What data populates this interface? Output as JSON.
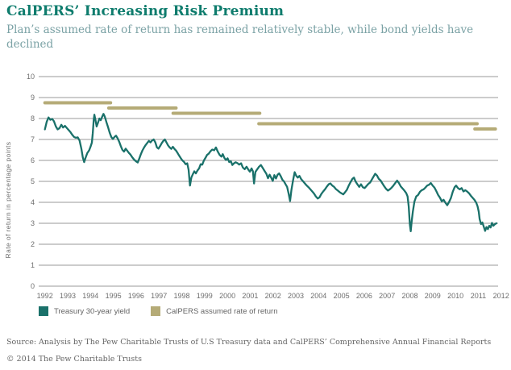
{
  "header": {
    "title": "CalPERS’ Increasing Risk Premium",
    "subtitle": "Plan’s assumed rate of return has remained relatively stable, while bond yields have declined"
  },
  "colors": {
    "title_teal": "#0e7c6d",
    "subtitle_gray_teal": "#7ba2a5",
    "treasury_line": "#1a716a",
    "calpers_line": "#b5ab77",
    "gridline": "#999999",
    "tick_label": "#6e6e6e",
    "footer_text": "#666666"
  },
  "legend": {
    "items": [
      {
        "label": "Treasury 30-year yield",
        "color": "#1a716a",
        "swatch": "teal-square"
      },
      {
        "label": "CalPERS assumed rate of return",
        "color": "#b5ab77",
        "swatch": "olive-square"
      }
    ]
  },
  "footer": {
    "source": "Source: Analysis by The Pew Charitable Trusts of U.S Treasury data and CalPERS’ Comprehensive Annual Financial Reports",
    "copyright": "© 2014 The Pew Charitable Trusts"
  },
  "chart_data": {
    "type": "line",
    "ylabel": "Rate of return in percentage points",
    "xlabel": "",
    "ylim": [
      0,
      10
    ],
    "xlim": [
      1992,
      2012
    ],
    "y_ticks": [
      0,
      1,
      2,
      3,
      4,
      5,
      6,
      7,
      8,
      9,
      10
    ],
    "x_ticks": [
      1992,
      1993,
      1994,
      1995,
      1996,
      1997,
      1998,
      1999,
      2000,
      2001,
      2002,
      2003,
      2004,
      2005,
      2006,
      2007,
      2008,
      2009,
      2010,
      2011,
      2012
    ],
    "grid": true,
    "legend_position": "bottom",
    "series": [
      {
        "name": "Treasury 30-year yield",
        "type": "line",
        "color": "#1a716a",
        "points": [
          [
            1992.0,
            7.48
          ],
          [
            1992.08,
            7.85
          ],
          [
            1992.16,
            8.05
          ],
          [
            1992.24,
            7.94
          ],
          [
            1992.32,
            7.98
          ],
          [
            1992.4,
            7.86
          ],
          [
            1992.48,
            7.62
          ],
          [
            1992.56,
            7.48
          ],
          [
            1992.64,
            7.54
          ],
          [
            1992.72,
            7.7
          ],
          [
            1992.8,
            7.57
          ],
          [
            1992.88,
            7.65
          ],
          [
            1992.96,
            7.55
          ],
          [
            1993.04,
            7.45
          ],
          [
            1993.12,
            7.35
          ],
          [
            1993.2,
            7.22
          ],
          [
            1993.28,
            7.12
          ],
          [
            1993.36,
            7.08
          ],
          [
            1993.44,
            7.1
          ],
          [
            1993.52,
            6.95
          ],
          [
            1993.6,
            6.55
          ],
          [
            1993.66,
            6.15
          ],
          [
            1993.72,
            5.92
          ],
          [
            1993.78,
            6.12
          ],
          [
            1993.86,
            6.35
          ],
          [
            1993.94,
            6.48
          ],
          [
            1994.0,
            6.65
          ],
          [
            1994.06,
            6.85
          ],
          [
            1994.1,
            7.3
          ],
          [
            1994.14,
            7.95
          ],
          [
            1994.17,
            8.18
          ],
          [
            1994.22,
            7.92
          ],
          [
            1994.27,
            7.62
          ],
          [
            1994.33,
            7.8
          ],
          [
            1994.39,
            8.0
          ],
          [
            1994.45,
            7.92
          ],
          [
            1994.51,
            8.08
          ],
          [
            1994.57,
            8.22
          ],
          [
            1994.63,
            8.08
          ],
          [
            1994.7,
            7.82
          ],
          [
            1994.77,
            7.58
          ],
          [
            1994.84,
            7.32
          ],
          [
            1994.91,
            7.12
          ],
          [
            1994.98,
            7.02
          ],
          [
            1995.05,
            7.12
          ],
          [
            1995.12,
            7.18
          ],
          [
            1995.19,
            7.05
          ],
          [
            1995.26,
            6.88
          ],
          [
            1995.33,
            6.68
          ],
          [
            1995.4,
            6.5
          ],
          [
            1995.47,
            6.42
          ],
          [
            1995.54,
            6.56
          ],
          [
            1995.61,
            6.46
          ],
          [
            1995.68,
            6.36
          ],
          [
            1995.75,
            6.28
          ],
          [
            1995.83,
            6.15
          ],
          [
            1995.91,
            6.04
          ],
          [
            1995.99,
            5.96
          ],
          [
            1996.07,
            5.9
          ],
          [
            1996.14,
            6.1
          ],
          [
            1996.21,
            6.3
          ],
          [
            1996.28,
            6.48
          ],
          [
            1996.35,
            6.62
          ],
          [
            1996.42,
            6.74
          ],
          [
            1996.49,
            6.84
          ],
          [
            1996.56,
            6.93
          ],
          [
            1996.63,
            6.86
          ],
          [
            1996.7,
            6.95
          ],
          [
            1996.77,
            7.0
          ],
          [
            1996.84,
            6.86
          ],
          [
            1996.91,
            6.62
          ],
          [
            1996.98,
            6.56
          ],
          [
            1997.05,
            6.68
          ],
          [
            1997.12,
            6.82
          ],
          [
            1997.19,
            6.93
          ],
          [
            1997.26,
            7.0
          ],
          [
            1997.33,
            6.86
          ],
          [
            1997.4,
            6.72
          ],
          [
            1997.47,
            6.62
          ],
          [
            1997.54,
            6.55
          ],
          [
            1997.61,
            6.65
          ],
          [
            1997.68,
            6.55
          ],
          [
            1997.75,
            6.47
          ],
          [
            1997.82,
            6.35
          ],
          [
            1997.89,
            6.22
          ],
          [
            1997.96,
            6.1
          ],
          [
            1998.03,
            6.0
          ],
          [
            1998.1,
            5.93
          ],
          [
            1998.17,
            5.82
          ],
          [
            1998.24,
            5.86
          ],
          [
            1998.3,
            5.55
          ],
          [
            1998.36,
            4.8
          ],
          [
            1998.42,
            5.18
          ],
          [
            1998.48,
            5.33
          ],
          [
            1998.55,
            5.48
          ],
          [
            1998.62,
            5.38
          ],
          [
            1998.69,
            5.52
          ],
          [
            1998.76,
            5.62
          ],
          [
            1998.83,
            5.82
          ],
          [
            1998.9,
            5.8
          ],
          [
            1998.97,
            6.0
          ],
          [
            1999.04,
            6.12
          ],
          [
            1999.11,
            6.26
          ],
          [
            1999.18,
            6.32
          ],
          [
            1999.26,
            6.44
          ],
          [
            1999.34,
            6.52
          ],
          [
            1999.42,
            6.48
          ],
          [
            1999.5,
            6.62
          ],
          [
            1999.58,
            6.42
          ],
          [
            1999.66,
            6.26
          ],
          [
            1999.74,
            6.18
          ],
          [
            1999.8,
            6.3
          ],
          [
            1999.87,
            6.12
          ],
          [
            1999.94,
            6.02
          ],
          [
            2000.01,
            6.1
          ],
          [
            2000.08,
            5.92
          ],
          [
            2000.15,
            5.97
          ],
          [
            2000.22,
            5.78
          ],
          [
            2000.29,
            5.86
          ],
          [
            2000.36,
            5.91
          ],
          [
            2000.44,
            5.87
          ],
          [
            2000.52,
            5.8
          ],
          [
            2000.6,
            5.86
          ],
          [
            2000.68,
            5.66
          ],
          [
            2000.76,
            5.58
          ],
          [
            2000.84,
            5.7
          ],
          [
            2000.92,
            5.56
          ],
          [
            2000.99,
            5.46
          ],
          [
            2001.06,
            5.62
          ],
          [
            2001.12,
            5.48
          ],
          [
            2001.17,
            4.9
          ],
          [
            2001.23,
            5.45
          ],
          [
            2001.31,
            5.58
          ],
          [
            2001.39,
            5.7
          ],
          [
            2001.47,
            5.78
          ],
          [
            2001.55,
            5.64
          ],
          [
            2001.63,
            5.5
          ],
          [
            2001.71,
            5.36
          ],
          [
            2001.78,
            5.15
          ],
          [
            2001.85,
            5.32
          ],
          [
            2001.92,
            5.18
          ],
          [
            2001.99,
            5.02
          ],
          [
            2002.06,
            5.3
          ],
          [
            2002.13,
            5.14
          ],
          [
            2002.2,
            5.32
          ],
          [
            2002.27,
            5.38
          ],
          [
            2002.34,
            5.25
          ],
          [
            2002.41,
            5.08
          ],
          [
            2002.48,
            5.0
          ],
          [
            2002.55,
            4.86
          ],
          [
            2002.62,
            4.74
          ],
          [
            2002.69,
            4.4
          ],
          [
            2002.75,
            4.06
          ],
          [
            2002.81,
            4.6
          ],
          [
            2002.88,
            5.05
          ],
          [
            2002.95,
            5.44
          ],
          [
            2003.02,
            5.26
          ],
          [
            2003.09,
            5.18
          ],
          [
            2003.16,
            5.26
          ],
          [
            2003.24,
            5.1
          ],
          [
            2003.32,
            5.0
          ],
          [
            2003.4,
            4.9
          ],
          [
            2003.48,
            4.8
          ],
          [
            2003.56,
            4.72
          ],
          [
            2003.64,
            4.62
          ],
          [
            2003.72,
            4.52
          ],
          [
            2003.8,
            4.42
          ],
          [
            2003.88,
            4.28
          ],
          [
            2003.96,
            4.18
          ],
          [
            2004.04,
            4.24
          ],
          [
            2004.12,
            4.4
          ],
          [
            2004.2,
            4.52
          ],
          [
            2004.28,
            4.62
          ],
          [
            2004.36,
            4.75
          ],
          [
            2004.44,
            4.86
          ],
          [
            2004.52,
            4.9
          ],
          [
            2004.6,
            4.8
          ],
          [
            2004.68,
            4.74
          ],
          [
            2004.76,
            4.63
          ],
          [
            2004.84,
            4.56
          ],
          [
            2004.92,
            4.49
          ],
          [
            2005.0,
            4.43
          ],
          [
            2005.08,
            4.38
          ],
          [
            2005.16,
            4.48
          ],
          [
            2005.24,
            4.6
          ],
          [
            2005.32,
            4.8
          ],
          [
            2005.4,
            4.96
          ],
          [
            2005.48,
            5.12
          ],
          [
            2005.55,
            5.18
          ],
          [
            2005.62,
            5.0
          ],
          [
            2005.7,
            4.86
          ],
          [
            2005.78,
            4.74
          ],
          [
            2005.86,
            4.86
          ],
          [
            2005.94,
            4.72
          ],
          [
            2006.02,
            4.68
          ],
          [
            2006.1,
            4.78
          ],
          [
            2006.18,
            4.88
          ],
          [
            2006.26,
            4.95
          ],
          [
            2006.34,
            5.1
          ],
          [
            2006.42,
            5.25
          ],
          [
            2006.48,
            5.36
          ],
          [
            2006.56,
            5.28
          ],
          [
            2006.64,
            5.12
          ],
          [
            2006.72,
            5.04
          ],
          [
            2006.8,
            4.9
          ],
          [
            2006.88,
            4.76
          ],
          [
            2006.96,
            4.64
          ],
          [
            2007.04,
            4.56
          ],
          [
            2007.12,
            4.62
          ],
          [
            2007.2,
            4.7
          ],
          [
            2007.28,
            4.8
          ],
          [
            2007.36,
            4.92
          ],
          [
            2007.44,
            5.04
          ],
          [
            2007.52,
            4.92
          ],
          [
            2007.6,
            4.76
          ],
          [
            2007.68,
            4.66
          ],
          [
            2007.76,
            4.56
          ],
          [
            2007.84,
            4.44
          ],
          [
            2007.9,
            4.28
          ],
          [
            2007.95,
            3.8
          ],
          [
            2008.0,
            2.95
          ],
          [
            2008.04,
            2.62
          ],
          [
            2008.08,
            3.1
          ],
          [
            2008.13,
            3.55
          ],
          [
            2008.2,
            4.04
          ],
          [
            2008.28,
            4.28
          ],
          [
            2008.36,
            4.35
          ],
          [
            2008.44,
            4.5
          ],
          [
            2008.52,
            4.58
          ],
          [
            2008.6,
            4.62
          ],
          [
            2008.68,
            4.7
          ],
          [
            2008.76,
            4.8
          ],
          [
            2008.84,
            4.84
          ],
          [
            2008.92,
            4.92
          ],
          [
            2009.0,
            4.8
          ],
          [
            2009.08,
            4.7
          ],
          [
            2009.16,
            4.54
          ],
          [
            2009.24,
            4.35
          ],
          [
            2009.32,
            4.22
          ],
          [
            2009.4,
            4.05
          ],
          [
            2009.48,
            4.12
          ],
          [
            2009.56,
            3.98
          ],
          [
            2009.64,
            3.86
          ],
          [
            2009.72,
            4.02
          ],
          [
            2009.8,
            4.2
          ],
          [
            2009.88,
            4.5
          ],
          [
            2009.96,
            4.72
          ],
          [
            2010.03,
            4.8
          ],
          [
            2010.11,
            4.68
          ],
          [
            2010.19,
            4.62
          ],
          [
            2010.27,
            4.68
          ],
          [
            2010.35,
            4.52
          ],
          [
            2010.43,
            4.58
          ],
          [
            2010.51,
            4.52
          ],
          [
            2010.59,
            4.44
          ],
          [
            2010.67,
            4.32
          ],
          [
            2010.75,
            4.22
          ],
          [
            2010.83,
            4.12
          ],
          [
            2010.91,
            3.98
          ],
          [
            2010.97,
            3.8
          ],
          [
            2011.02,
            3.55
          ],
          [
            2011.06,
            3.2
          ],
          [
            2011.12,
            2.96
          ],
          [
            2011.18,
            3.04
          ],
          [
            2011.24,
            2.84
          ],
          [
            2011.3,
            2.64
          ],
          [
            2011.36,
            2.82
          ],
          [
            2011.42,
            2.72
          ],
          [
            2011.48,
            2.88
          ],
          [
            2011.54,
            2.8
          ],
          [
            2011.6,
            3.02
          ],
          [
            2011.66,
            2.88
          ],
          [
            2011.72,
            2.95
          ],
          [
            2011.79,
            3.0
          ]
        ]
      },
      {
        "name": "CalPERS assumed rate of return",
        "type": "horizontal-segments",
        "color": "#b5ab77",
        "segments": [
          {
            "from": 1992.0,
            "to": 1994.88,
            "value": 8.75
          },
          {
            "from": 1994.8,
            "to": 1997.75,
            "value": 8.5
          },
          {
            "from": 1997.62,
            "to": 2001.42,
            "value": 8.25
          },
          {
            "from": 2001.38,
            "to": 2010.95,
            "value": 7.75
          },
          {
            "from": 2010.85,
            "to": 2011.75,
            "value": 7.5
          }
        ]
      }
    ]
  }
}
